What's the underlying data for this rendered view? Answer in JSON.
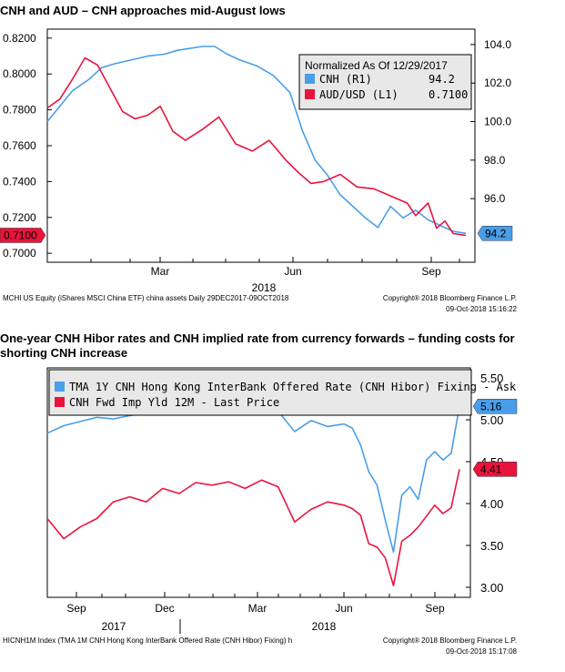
{
  "chart_data": [
    {
      "type": "line",
      "title": "CNH and AUD – CNH approaches mid-August lows",
      "x_tick_labels": [
        "Mar",
        "Jun",
        "Sep"
      ],
      "x_year_label": "2018",
      "left_axis": {
        "ylim": [
          0.695,
          0.825
        ],
        "ticks": [
          "0.8200",
          "0.8000",
          "0.7800",
          "0.7600",
          "0.7400",
          "0.7200",
          "0.7000"
        ]
      },
      "right_axis": {
        "ylim": [
          92.7,
          104.8
        ],
        "ticks": [
          "104.0",
          "102.0",
          "100.0",
          "98.0",
          "96.0"
        ]
      },
      "legend": {
        "header": "Normalized As Of 12/29/2017",
        "position": "top-right"
      },
      "series": [
        {
          "name": "CNH (R1)",
          "axis": "right",
          "color": "#4a9ee8",
          "last_value": "94.2",
          "x": [
            0,
            0.03,
            0.06,
            0.1,
            0.13,
            0.16,
            0.2,
            0.24,
            0.28,
            0.31,
            0.34,
            0.37,
            0.4,
            0.43,
            0.46,
            0.5,
            0.54,
            0.58,
            0.61,
            0.64,
            0.67,
            0.7,
            0.73,
            0.76,
            0.79,
            0.82,
            0.85,
            0.88,
            0.91,
            0.94,
            0.97,
            1.0
          ],
          "values": [
            100.0,
            100.8,
            101.6,
            102.2,
            102.8,
            103.0,
            103.2,
            103.4,
            103.5,
            103.7,
            103.8,
            103.9,
            103.9,
            103.5,
            103.2,
            102.9,
            102.4,
            101.5,
            99.5,
            98.0,
            97.2,
            96.2,
            95.6,
            95.0,
            94.5,
            95.6,
            95.0,
            95.4,
            94.9,
            94.6,
            94.3,
            94.2
          ]
        },
        {
          "name": "AUD/USD (L1)",
          "axis": "left",
          "color": "#e8143c",
          "last_value": "0.7100",
          "x": [
            0,
            0.03,
            0.06,
            0.09,
            0.12,
            0.15,
            0.18,
            0.21,
            0.24,
            0.27,
            0.3,
            0.33,
            0.37,
            0.41,
            0.45,
            0.49,
            0.53,
            0.57,
            0.6,
            0.63,
            0.66,
            0.7,
            0.74,
            0.78,
            0.82,
            0.86,
            0.88,
            0.91,
            0.93,
            0.95,
            0.97,
            1.0
          ],
          "values": [
            0.781,
            0.786,
            0.797,
            0.809,
            0.805,
            0.792,
            0.779,
            0.775,
            0.777,
            0.782,
            0.768,
            0.763,
            0.769,
            0.776,
            0.761,
            0.757,
            0.763,
            0.752,
            0.745,
            0.739,
            0.74,
            0.744,
            0.737,
            0.736,
            0.732,
            0.728,
            0.721,
            0.728,
            0.714,
            0.718,
            0.711,
            0.71
          ]
        }
      ],
      "footer": {
        "source": "MCHI US Equity (iShares MSCI China ETF) china assets  Daily 29DEC2017-09OCT2018",
        "copyright": "Copyright® 2018 Bloomberg Finance L.P.",
        "timestamp": "09-Oct-2018 15:16:22"
      }
    },
    {
      "type": "line",
      "title": "One-year CNH Hibor rates and CNH implied rate from currency forwards – funding costs for shorting CNH increase",
      "x_tick_labels": [
        "Sep",
        "Dec",
        "Mar",
        "Jun",
        "Sep"
      ],
      "x_year_labels": [
        "2017",
        "2018"
      ],
      "right_axis": {
        "ylim": [
          2.88,
          5.62
        ],
        "ticks": [
          "5.50",
          "5.00",
          "4.50",
          "4.00",
          "3.50",
          "3.00"
        ]
      },
      "legend": {
        "position": "top"
      },
      "series": [
        {
          "name": "TMA 1Y CNH Hong Kong InterBank Offered Rate (CNH Hibor) Fixing - Ask",
          "color": "#4a9ee8",
          "last_value": "5.16",
          "x": [
            0,
            0.04,
            0.08,
            0.12,
            0.16,
            0.2,
            0.24,
            0.28,
            0.32,
            0.36,
            0.4,
            0.44,
            0.48,
            0.52,
            0.56,
            0.6,
            0.64,
            0.68,
            0.72,
            0.74,
            0.76,
            0.78,
            0.8,
            0.82,
            0.84,
            0.86,
            0.88,
            0.9,
            0.92,
            0.94,
            0.96,
            0.98,
            1.0
          ],
          "values": [
            4.84,
            4.93,
            4.98,
            5.03,
            5.01,
            5.05,
            5.08,
            5.1,
            5.07,
            5.1,
            5.13,
            5.11,
            5.08,
            5.12,
            5.1,
            4.86,
            4.99,
            4.92,
            4.95,
            4.9,
            4.7,
            4.38,
            4.22,
            3.8,
            3.42,
            4.1,
            4.2,
            4.05,
            4.52,
            4.62,
            4.52,
            4.6,
            5.16
          ]
        },
        {
          "name": "CNH Fwd Imp Yld 12M - Last Price",
          "color": "#e8143c",
          "last_value": "4.41",
          "x": [
            0,
            0.04,
            0.08,
            0.12,
            0.16,
            0.2,
            0.24,
            0.28,
            0.32,
            0.36,
            0.4,
            0.44,
            0.48,
            0.52,
            0.56,
            0.6,
            0.64,
            0.68,
            0.72,
            0.74,
            0.76,
            0.78,
            0.8,
            0.82,
            0.84,
            0.86,
            0.88,
            0.9,
            0.92,
            0.94,
            0.96,
            0.98,
            1.0
          ],
          "values": [
            3.82,
            3.58,
            3.72,
            3.82,
            4.02,
            4.08,
            4.02,
            4.18,
            4.12,
            4.25,
            4.22,
            4.26,
            4.18,
            4.28,
            4.2,
            3.78,
            3.93,
            4.02,
            3.98,
            3.94,
            3.86,
            3.52,
            3.48,
            3.35,
            3.02,
            3.55,
            3.62,
            3.72,
            3.85,
            3.98,
            3.88,
            3.95,
            4.41
          ]
        }
      ],
      "footer": {
        "source": "HICNH1M Index (TMA 1M CNH Hong Kong InterBank Offered Rate (CNH Hibor) Fixing) h",
        "copyright": "Copyright® 2018 Bloomberg Finance L.P.",
        "timestamp": "09-Oct-2018 15:17:08"
      }
    }
  ]
}
